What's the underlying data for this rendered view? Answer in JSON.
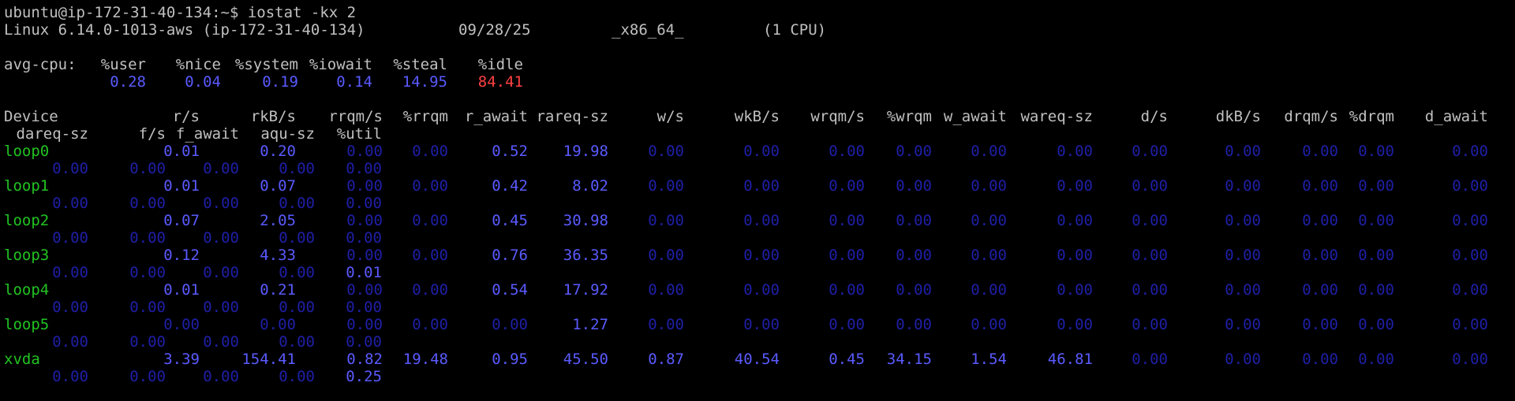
{
  "prompt": "ubuntu@ip-172-31-40-134:~$ iostat -kx 2",
  "sysinfo": {
    "kernel": "Linux 6.14.0-1013-aws (ip-172-31-40-134)",
    "date": "09/28/25",
    "arch": "_x86_64_",
    "cpus": "(1 CPU)"
  },
  "cpu": {
    "label": "avg-cpu:",
    "headers": [
      "%user",
      "%nice",
      "%system",
      "%iowait",
      "%steal",
      "%idle"
    ],
    "values": [
      "0.28",
      "0.04",
      "0.19",
      "0.14",
      "14.95",
      "84.41"
    ]
  },
  "device_headers_1": [
    "Device",
    "r/s",
    "rkB/s",
    "rrqm/s",
    "%rrqm",
    "r_await",
    "rareq-sz",
    "w/s",
    "wkB/s",
    "wrqm/s",
    "%wrqm",
    "w_await",
    "wareq-sz",
    "d/s",
    "dkB/s",
    "drqm/s",
    "%drqm",
    "d_await"
  ],
  "device_headers_2": [
    "dareq-sz",
    "f/s",
    "f_await",
    "aqu-sz",
    "%util"
  ],
  "devices": [
    {
      "name": "loop0",
      "l1": [
        "0.01",
        "0.20",
        "0.00",
        "0.00",
        "0.52",
        "19.98",
        "0.00",
        "0.00",
        "0.00",
        "0.00",
        "0.00",
        "0.00",
        "0.00",
        "0.00",
        "0.00",
        "0.00",
        "0.00"
      ],
      "l2": [
        "0.00",
        "0.00",
        "0.00",
        "0.00",
        "0.00"
      ]
    },
    {
      "name": "loop1",
      "l1": [
        "0.01",
        "0.07",
        "0.00",
        "0.00",
        "0.42",
        "8.02",
        "0.00",
        "0.00",
        "0.00",
        "0.00",
        "0.00",
        "0.00",
        "0.00",
        "0.00",
        "0.00",
        "0.00",
        "0.00"
      ],
      "l2": [
        "0.00",
        "0.00",
        "0.00",
        "0.00",
        "0.00"
      ]
    },
    {
      "name": "loop2",
      "l1": [
        "0.07",
        "2.05",
        "0.00",
        "0.00",
        "0.45",
        "30.98",
        "0.00",
        "0.00",
        "0.00",
        "0.00",
        "0.00",
        "0.00",
        "0.00",
        "0.00",
        "0.00",
        "0.00",
        "0.00"
      ],
      "l2": [
        "0.00",
        "0.00",
        "0.00",
        "0.00",
        "0.00"
      ]
    },
    {
      "name": "loop3",
      "l1": [
        "0.12",
        "4.33",
        "0.00",
        "0.00",
        "0.76",
        "36.35",
        "0.00",
        "0.00",
        "0.00",
        "0.00",
        "0.00",
        "0.00",
        "0.00",
        "0.00",
        "0.00",
        "0.00",
        "0.00"
      ],
      "l2": [
        "0.00",
        "0.00",
        "0.00",
        "0.00",
        "0.01"
      ]
    },
    {
      "name": "loop4",
      "l1": [
        "0.01",
        "0.21",
        "0.00",
        "0.00",
        "0.54",
        "17.92",
        "0.00",
        "0.00",
        "0.00",
        "0.00",
        "0.00",
        "0.00",
        "0.00",
        "0.00",
        "0.00",
        "0.00",
        "0.00"
      ],
      "l2": [
        "0.00",
        "0.00",
        "0.00",
        "0.00",
        "0.00"
      ]
    },
    {
      "name": "loop5",
      "l1": [
        "0.00",
        "0.00",
        "0.00",
        "0.00",
        "0.00",
        "1.27",
        "0.00",
        "0.00",
        "0.00",
        "0.00",
        "0.00",
        "0.00",
        "0.00",
        "0.00",
        "0.00",
        "0.00",
        "0.00"
      ],
      "l2": [
        "0.00",
        "0.00",
        "0.00",
        "0.00",
        "0.00"
      ]
    },
    {
      "name": "xvda",
      "l1": [
        "3.39",
        "154.41",
        "0.82",
        "19.48",
        "0.95",
        "45.50",
        "0.87",
        "40.54",
        "0.45",
        "34.15",
        "1.54",
        "46.81",
        "0.00",
        "0.00",
        "0.00",
        "0.00",
        "0.00"
      ],
      "l2": [
        "0.00",
        "0.00",
        "0.00",
        "0.00",
        "0.25"
      ]
    }
  ]
}
